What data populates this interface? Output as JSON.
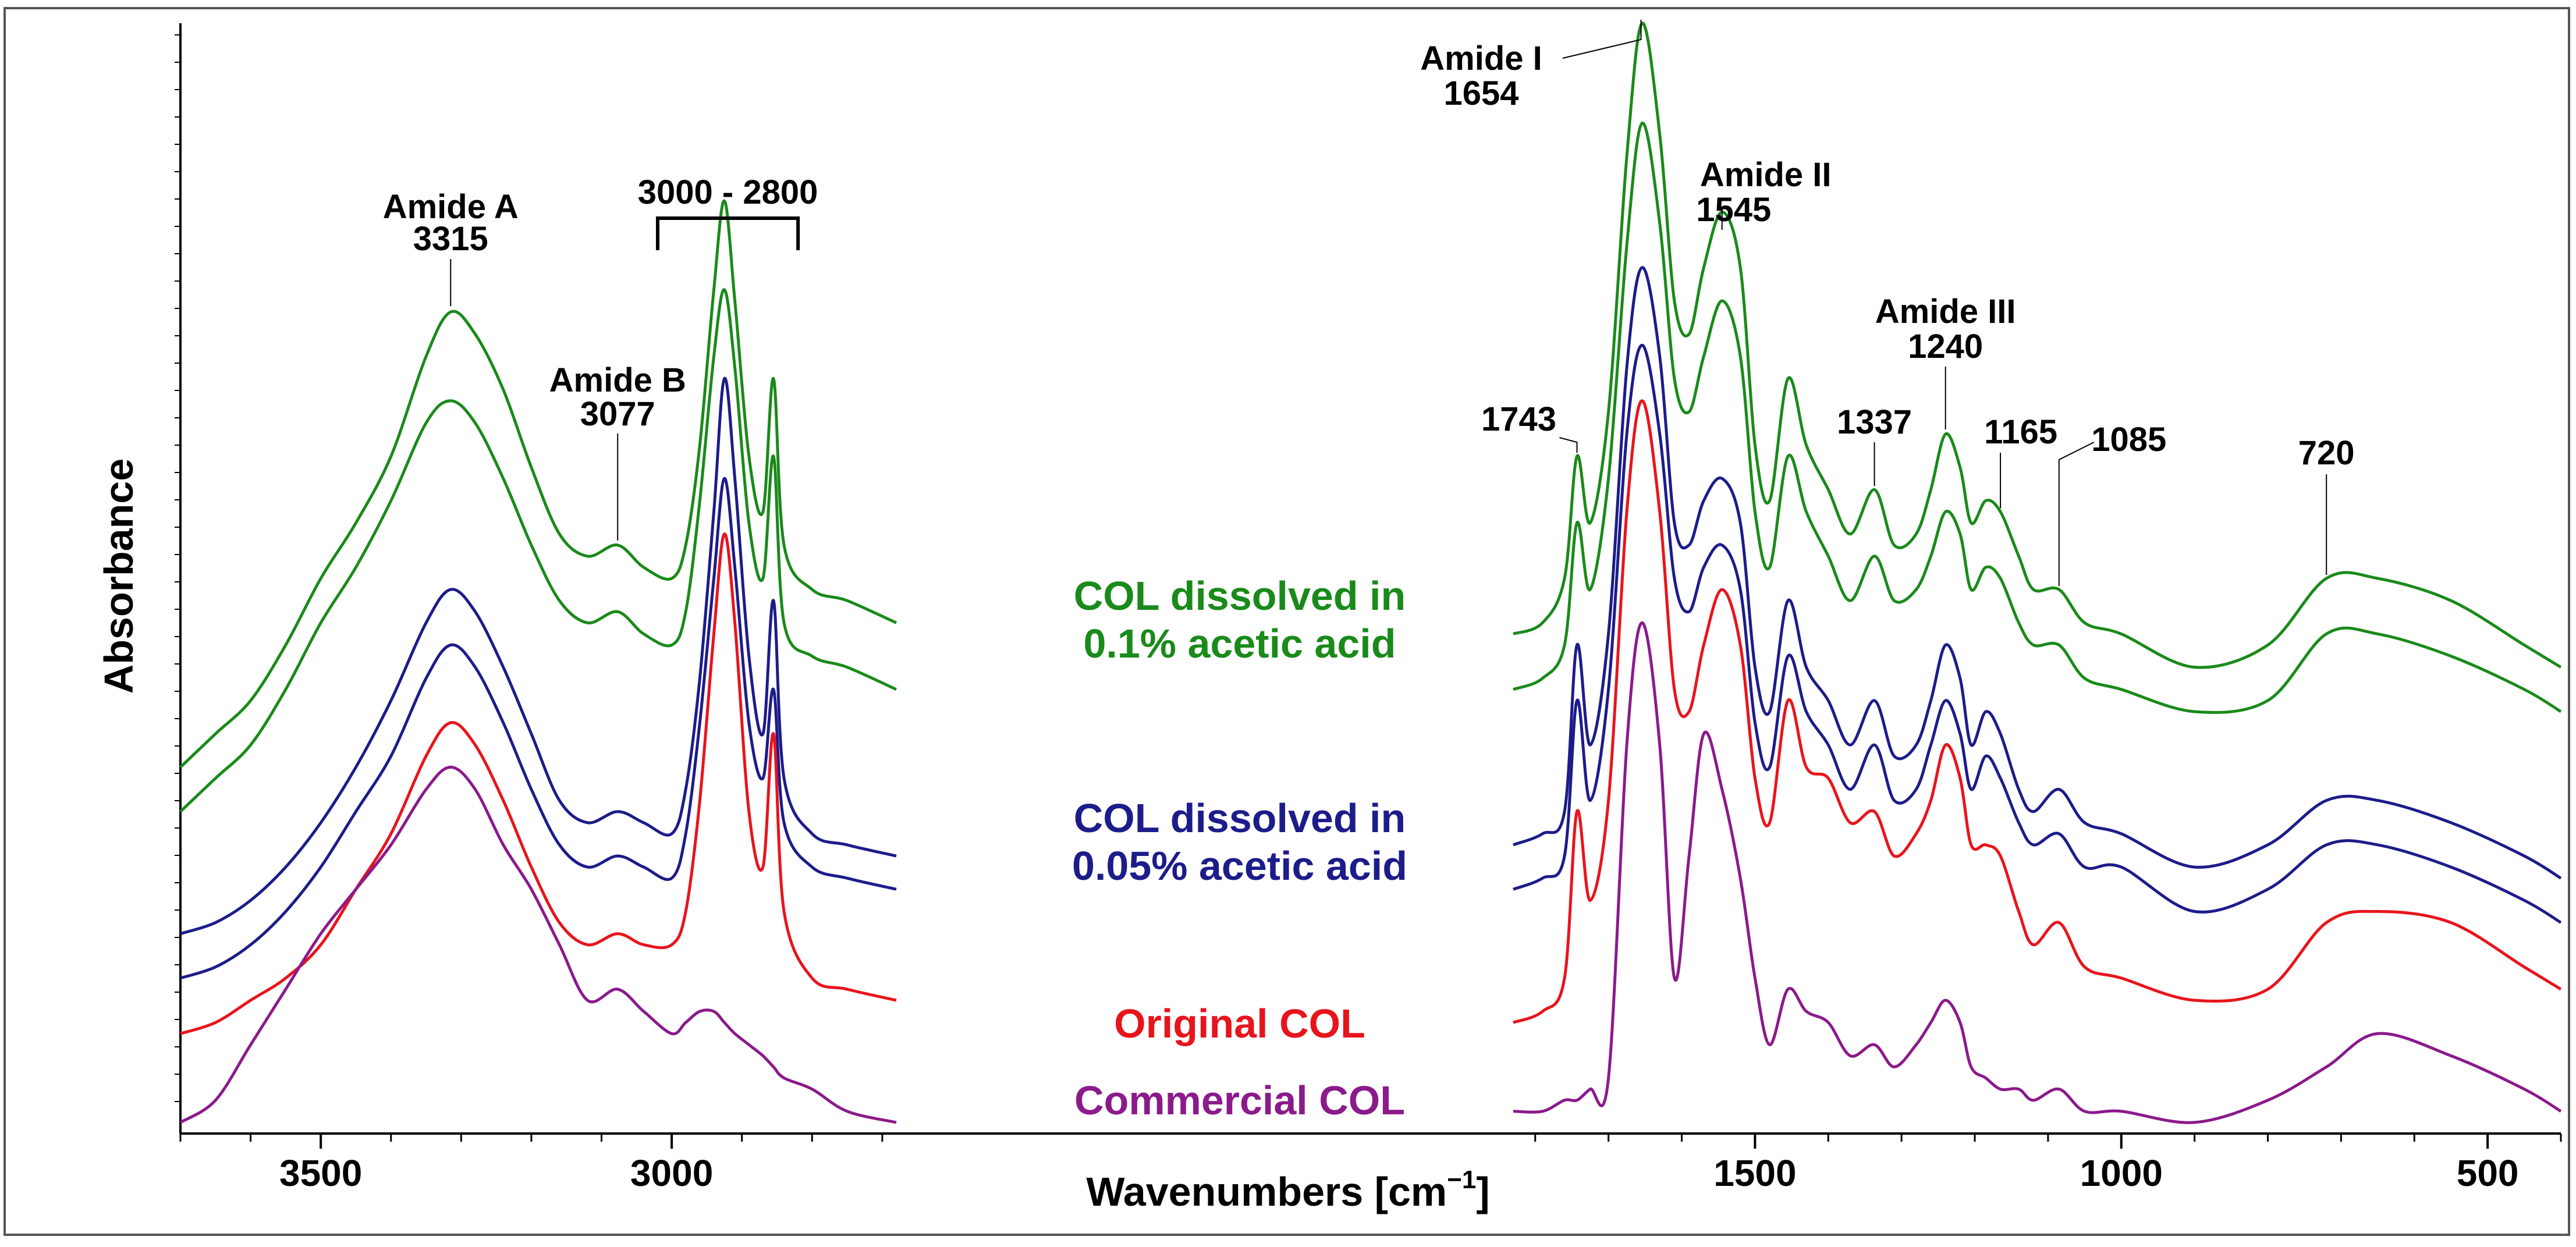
{
  "chart_data": {
    "type": "line",
    "title": "",
    "xlabel": "Wavenumbers [cm",
    "xlabel_sup": "−1",
    "xlabel_close": "]",
    "ylabel": "Absorbance",
    "x_direction": "descending",
    "grid": false,
    "legend_placement": "center",
    "panels": [
      {
        "name": "high-wavenumber",
        "xlim": [
          3700,
          2680
        ],
        "ticks": [
          3500,
          3000
        ]
      },
      {
        "name": "fingerprint",
        "xlim": [
          1830,
          400
        ],
        "ticks": [
          1500,
          1000,
          500
        ]
      }
    ],
    "tick_labels": [
      "3500",
      "3000",
      "1500",
      "1000",
      "500"
    ],
    "ylim": [
      0,
      10
    ],
    "series": [
      {
        "name": "COL dissolved in 0.1% acetic acid (upper trace)",
        "color": "#1a8a1a",
        "x1": [
          3700,
          3650,
          3600,
          3550,
          3500,
          3450,
          3400,
          3350,
          3315,
          3280,
          3240,
          3200,
          3160,
          3120,
          3077,
          3040,
          3000,
          2980,
          2960,
          2940,
          2925,
          2910,
          2890,
          2870,
          2855,
          2840,
          2800,
          2750,
          2680
        ],
        "y1": [
          3.3,
          3.6,
          3.9,
          4.4,
          5.0,
          5.5,
          6.1,
          7.0,
          7.4,
          7.2,
          6.7,
          6.0,
          5.4,
          5.2,
          5.3,
          5.1,
          5.0,
          5.3,
          6.2,
          7.6,
          8.4,
          7.5,
          6.1,
          5.6,
          6.8,
          5.3,
          4.9,
          4.8,
          4.6
        ],
        "x2": [
          1830,
          1790,
          1760,
          1743,
          1725,
          1700,
          1675,
          1654,
          1630,
          1610,
          1590,
          1570,
          1545,
          1520,
          1500,
          1480,
          1455,
          1430,
          1400,
          1370,
          1337,
          1310,
          1280,
          1260,
          1240,
          1220,
          1205,
          1185,
          1165,
          1140,
          1120,
          1085,
          1050,
          1000,
          900,
          800,
          720,
          650,
          550,
          450,
          400
        ],
        "y2": [
          4.5,
          4.6,
          5.0,
          6.1,
          5.5,
          6.5,
          8.8,
          10.0,
          9.0,
          7.5,
          7.2,
          7.8,
          8.3,
          7.8,
          6.2,
          5.7,
          6.8,
          6.2,
          5.8,
          5.4,
          5.8,
          5.3,
          5.4,
          5.8,
          6.3,
          6.0,
          5.5,
          5.7,
          5.6,
          5.2,
          4.9,
          4.9,
          4.6,
          4.5,
          4.2,
          4.4,
          5.0,
          5.0,
          4.8,
          4.4,
          4.2
        ]
      },
      {
        "name": "COL dissolved in 0.1% acetic acid (lower trace)",
        "color": "#1a8a1a",
        "x1": [
          3700,
          3650,
          3600,
          3550,
          3500,
          3450,
          3400,
          3350,
          3315,
          3280,
          3240,
          3200,
          3160,
          3120,
          3077,
          3040,
          3000,
          2980,
          2960,
          2940,
          2925,
          2910,
          2890,
          2870,
          2855,
          2840,
          2800,
          2750,
          2680
        ],
        "y1": [
          2.9,
          3.2,
          3.5,
          4.0,
          4.6,
          5.1,
          5.7,
          6.4,
          6.6,
          6.4,
          5.9,
          5.3,
          4.8,
          4.6,
          4.7,
          4.5,
          4.4,
          4.7,
          5.7,
          7.0,
          7.6,
          6.9,
          5.5,
          5.0,
          6.1,
          4.6,
          4.3,
          4.2,
          4.0
        ],
        "x2": [
          1830,
          1790,
          1760,
          1743,
          1725,
          1700,
          1675,
          1654,
          1630,
          1610,
          1590,
          1570,
          1545,
          1520,
          1500,
          1480,
          1455,
          1430,
          1400,
          1370,
          1337,
          1310,
          1280,
          1260,
          1240,
          1220,
          1205,
          1185,
          1165,
          1140,
          1120,
          1085,
          1050,
          1000,
          900,
          800,
          720,
          650,
          550,
          450,
          400
        ],
        "y2": [
          4.0,
          4.1,
          4.4,
          5.5,
          4.9,
          5.9,
          8.0,
          9.1,
          8.2,
          6.8,
          6.5,
          7.0,
          7.5,
          7.0,
          5.6,
          5.1,
          6.1,
          5.6,
          5.2,
          4.8,
          5.2,
          4.8,
          4.9,
          5.2,
          5.6,
          5.4,
          4.9,
          5.1,
          5.0,
          4.6,
          4.4,
          4.4,
          4.1,
          4.0,
          3.8,
          3.9,
          4.5,
          4.5,
          4.3,
          4.0,
          3.8
        ]
      },
      {
        "name": "COL dissolved in 0.05% acetic acid (upper trace)",
        "color": "#1c1c8a",
        "x1": [
          3700,
          3650,
          3600,
          3550,
          3500,
          3450,
          3400,
          3350,
          3315,
          3280,
          3240,
          3200,
          3160,
          3120,
          3077,
          3040,
          3000,
          2980,
          2960,
          2940,
          2925,
          2910,
          2890,
          2870,
          2855,
          2840,
          2800,
          2750,
          2680
        ],
        "y1": [
          1.8,
          1.9,
          2.1,
          2.4,
          2.8,
          3.3,
          3.9,
          4.6,
          4.9,
          4.7,
          4.2,
          3.6,
          3.0,
          2.8,
          2.9,
          2.8,
          2.7,
          3.1,
          4.1,
          5.6,
          6.8,
          5.9,
          4.3,
          3.6,
          4.8,
          3.2,
          2.7,
          2.6,
          2.5
        ],
        "x2": [
          1830,
          1790,
          1760,
          1743,
          1725,
          1700,
          1675,
          1654,
          1630,
          1610,
          1590,
          1570,
          1545,
          1520,
          1500,
          1480,
          1455,
          1430,
          1400,
          1370,
          1337,
          1310,
          1280,
          1260,
          1240,
          1220,
          1205,
          1185,
          1165,
          1140,
          1120,
          1085,
          1050,
          1000,
          900,
          800,
          720,
          650,
          550,
          450,
          400
        ],
        "y2": [
          2.6,
          2.7,
          2.9,
          4.4,
          3.5,
          4.5,
          6.9,
          7.8,
          7.0,
          5.5,
          5.3,
          5.7,
          5.9,
          5.5,
          4.2,
          3.8,
          4.8,
          4.2,
          3.9,
          3.5,
          3.9,
          3.4,
          3.5,
          3.9,
          4.4,
          4.1,
          3.5,
          3.8,
          3.6,
          3.1,
          2.9,
          3.1,
          2.8,
          2.7,
          2.4,
          2.6,
          3.0,
          3.0,
          2.8,
          2.5,
          2.3
        ]
      },
      {
        "name": "COL dissolved in 0.05% acetic acid (lower trace)",
        "color": "#1c1c8a",
        "x1": [
          3700,
          3650,
          3600,
          3550,
          3500,
          3450,
          3400,
          3350,
          3315,
          3280,
          3240,
          3200,
          3160,
          3120,
          3077,
          3040,
          3000,
          2980,
          2960,
          2940,
          2925,
          2910,
          2890,
          2870,
          2855,
          2840,
          2800,
          2750,
          2680
        ],
        "y1": [
          1.4,
          1.5,
          1.7,
          2.0,
          2.4,
          2.9,
          3.4,
          4.1,
          4.4,
          4.2,
          3.7,
          3.1,
          2.6,
          2.4,
          2.5,
          2.4,
          2.3,
          2.7,
          3.7,
          5.0,
          5.9,
          5.1,
          3.7,
          3.2,
          4.0,
          2.8,
          2.4,
          2.3,
          2.2
        ],
        "x2": [
          1830,
          1790,
          1760,
          1743,
          1725,
          1700,
          1675,
          1654,
          1630,
          1610,
          1590,
          1570,
          1545,
          1520,
          1500,
          1480,
          1455,
          1430,
          1400,
          1370,
          1337,
          1310,
          1280,
          1260,
          1240,
          1220,
          1205,
          1185,
          1165,
          1140,
          1120,
          1085,
          1050,
          1000,
          900,
          800,
          720,
          650,
          550,
          450,
          400
        ],
        "y2": [
          2.2,
          2.3,
          2.5,
          3.9,
          3.0,
          4.0,
          6.3,
          7.1,
          6.3,
          5.0,
          4.7,
          5.1,
          5.3,
          4.9,
          3.7,
          3.3,
          4.3,
          3.8,
          3.5,
          3.1,
          3.5,
          3.0,
          3.1,
          3.5,
          3.9,
          3.6,
          3.1,
          3.4,
          3.2,
          2.8,
          2.6,
          2.7,
          2.4,
          2.4,
          2.0,
          2.2,
          2.6,
          2.6,
          2.4,
          2.1,
          1.9
        ]
      },
      {
        "name": "Original COL",
        "color": "#e8141c",
        "x1": [
          3700,
          3650,
          3600,
          3550,
          3500,
          3450,
          3400,
          3350,
          3315,
          3280,
          3240,
          3200,
          3160,
          3120,
          3077,
          3040,
          3000,
          2980,
          2960,
          2940,
          2925,
          2910,
          2890,
          2870,
          2855,
          2840,
          2800,
          2750,
          2680
        ],
        "y1": [
          0.9,
          1.0,
          1.2,
          1.4,
          1.7,
          2.2,
          2.7,
          3.4,
          3.7,
          3.5,
          3.0,
          2.4,
          1.9,
          1.7,
          1.8,
          1.7,
          1.7,
          2.0,
          3.0,
          4.5,
          5.4,
          4.6,
          2.9,
          2.4,
          3.6,
          2.0,
          1.4,
          1.3,
          1.2
        ],
        "x2": [
          1830,
          1790,
          1760,
          1743,
          1725,
          1700,
          1675,
          1654,
          1630,
          1610,
          1590,
          1570,
          1545,
          1520,
          1500,
          1480,
          1455,
          1430,
          1400,
          1370,
          1337,
          1310,
          1280,
          1260,
          1240,
          1220,
          1205,
          1185,
          1165,
          1140,
          1120,
          1085,
          1050,
          1000,
          900,
          800,
          720,
          650,
          550,
          450,
          400
        ],
        "y2": [
          1.0,
          1.1,
          1.4,
          2.9,
          2.1,
          3.0,
          5.6,
          6.6,
          5.6,
          4.0,
          3.8,
          4.4,
          4.9,
          4.4,
          3.2,
          2.8,
          3.9,
          3.3,
          3.2,
          2.8,
          2.9,
          2.5,
          2.7,
          3.0,
          3.5,
          3.2,
          2.6,
          2.6,
          2.5,
          2.0,
          1.7,
          1.9,
          1.5,
          1.4,
          1.2,
          1.3,
          1.9,
          2.0,
          1.9,
          1.5,
          1.3
        ]
      },
      {
        "name": "Commercial COL",
        "color": "#8b1a8b",
        "x1": [
          3700,
          3650,
          3600,
          3550,
          3500,
          3450,
          3400,
          3350,
          3315,
          3280,
          3240,
          3200,
          3160,
          3120,
          3077,
          3040,
          3000,
          2980,
          2960,
          2940,
          2925,
          2910,
          2890,
          2870,
          2855,
          2840,
          2800,
          2750,
          2680
        ],
        "y1": [
          0.1,
          0.3,
          0.8,
          1.3,
          1.8,
          2.2,
          2.6,
          3.1,
          3.3,
          3.1,
          2.6,
          2.2,
          1.7,
          1.2,
          1.3,
          1.1,
          0.9,
          1.0,
          1.1,
          1.1,
          1.0,
          0.9,
          0.8,
          0.7,
          0.6,
          0.5,
          0.4,
          0.2,
          0.1
        ],
        "x2": [
          1830,
          1790,
          1760,
          1743,
          1725,
          1700,
          1675,
          1654,
          1630,
          1610,
          1590,
          1570,
          1545,
          1520,
          1500,
          1480,
          1455,
          1430,
          1400,
          1370,
          1337,
          1310,
          1280,
          1260,
          1240,
          1220,
          1205,
          1185,
          1165,
          1140,
          1120,
          1085,
          1050,
          1000,
          900,
          800,
          720,
          650,
          550,
          450,
          400
        ],
        "y2": [
          0.2,
          0.2,
          0.3,
          0.3,
          0.4,
          0.5,
          3.5,
          4.6,
          3.5,
          1.4,
          2.5,
          3.6,
          3.1,
          2.3,
          1.4,
          0.8,
          1.3,
          1.1,
          1.0,
          0.7,
          0.8,
          0.6,
          0.8,
          1.0,
          1.2,
          1.0,
          0.6,
          0.5,
          0.4,
          0.4,
          0.3,
          0.4,
          0.2,
          0.2,
          0.1,
          0.3,
          0.6,
          0.9,
          0.7,
          0.4,
          0.2
        ]
      }
    ],
    "annotations": [
      {
        "label": "Amide A",
        "value": "3315"
      },
      {
        "label": "Amide B",
        "value": "3077"
      },
      {
        "label": "3000 - 2800",
        "value": ""
      },
      {
        "label": "Amide I",
        "value": "1654"
      },
      {
        "label": "Amide II",
        "value": "1545"
      },
      {
        "label": "Amide III",
        "value": "1240"
      },
      {
        "label": "",
        "value": "1743"
      },
      {
        "label": "",
        "value": "1337"
      },
      {
        "label": "",
        "value": "1165"
      },
      {
        "label": "",
        "value": "1085"
      },
      {
        "label": "",
        "value": "720"
      }
    ],
    "legend": [
      {
        "line1": "COL dissolved in",
        "line2": "0.1% acetic acid",
        "color": "#1a8a1a"
      },
      {
        "line1": "COL dissolved in",
        "line2": "0.05% acetic acid",
        "color": "#1c1c8a"
      },
      {
        "line1": "Original COL",
        "line2": "",
        "color": "#e8141c"
      },
      {
        "line1": "Commercial COL",
        "line2": "",
        "color": "#8b1a8b"
      }
    ]
  }
}
